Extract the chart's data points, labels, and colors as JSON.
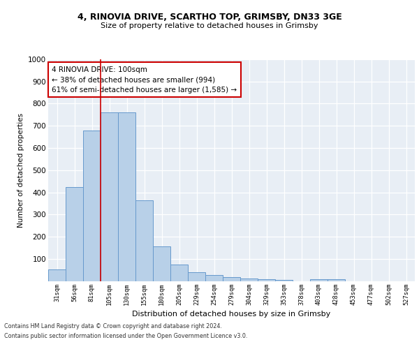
{
  "title_line1": "4, RINOVIA DRIVE, SCARTHO TOP, GRIMSBY, DN33 3GE",
  "title_line2": "Size of property relative to detached houses in Grimsby",
  "xlabel": "Distribution of detached houses by size in Grimsby",
  "ylabel": "Number of detached properties",
  "categories": [
    "31sqm",
    "56sqm",
    "81sqm",
    "105sqm",
    "130sqm",
    "155sqm",
    "180sqm",
    "205sqm",
    "229sqm",
    "254sqm",
    "279sqm",
    "304sqm",
    "329sqm",
    "353sqm",
    "378sqm",
    "403sqm",
    "428sqm",
    "453sqm",
    "477sqm",
    "502sqm",
    "527sqm"
  ],
  "values": [
    52,
    425,
    680,
    760,
    760,
    365,
    155,
    75,
    40,
    28,
    17,
    12,
    8,
    5,
    0,
    8,
    8,
    0,
    0,
    0,
    0
  ],
  "bar_color": "#b8d0e8",
  "bar_edge_color": "#6699cc",
  "annotation_text": "4 RINOVIA DRIVE: 100sqm\n← 38% of detached houses are smaller (994)\n61% of semi-detached houses are larger (1,585) →",
  "annotation_box_color": "#ffffff",
  "annotation_box_edge_color": "#cc0000",
  "ylim": [
    0,
    1000
  ],
  "yticks": [
    0,
    100,
    200,
    300,
    400,
    500,
    600,
    700,
    800,
    900,
    1000
  ],
  "footer_line1": "Contains HM Land Registry data © Crown copyright and database right 2024.",
  "footer_line2": "Contains public sector information licensed under the Open Government Licence v3.0.",
  "bg_color": "#e8eef5",
  "fig_bg_color": "#ffffff",
  "grid_color": "#ffffff",
  "vline_color": "#cc0000",
  "vline_x": 2.5
}
